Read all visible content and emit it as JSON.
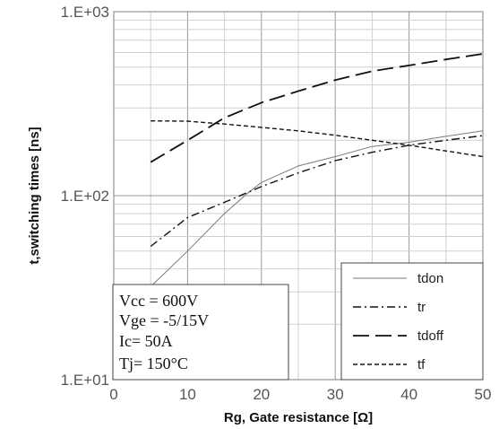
{
  "chart_data": {
    "type": "line",
    "xlabel": "Rg, Gate resistance [Ω]",
    "ylabel": "t,switching times [ns]",
    "xlim": [
      0,
      50
    ],
    "ylim": [
      10,
      1000
    ],
    "yscale": "log",
    "grid": true,
    "x_ticks": [
      "0",
      "10",
      "20",
      "30",
      "40",
      "50"
    ],
    "y_ticks": [
      "1.E+01",
      "1.E+02",
      "1.E+03"
    ],
    "legend_position": "bottom-right",
    "series": [
      {
        "name": "tdon",
        "dash": "solid",
        "x": [
          5,
          10,
          15,
          18,
          20,
          25,
          30,
          35,
          40,
          45,
          50
        ],
        "y": [
          32,
          50,
          80,
          102,
          118,
          145,
          163,
          185,
          195,
          210,
          225
        ]
      },
      {
        "name": "tr",
        "dash": "dashdot",
        "x": [
          5,
          10,
          15,
          20,
          25,
          30,
          35,
          40,
          45,
          50
        ],
        "y": [
          53,
          76,
          92,
          112,
          133,
          155,
          172,
          188,
          200,
          212
        ]
      },
      {
        "name": "tdoff",
        "dash": "longdash",
        "x": [
          5,
          10,
          15,
          20,
          25,
          30,
          35,
          40,
          45,
          50
        ],
        "y": [
          152,
          200,
          265,
          320,
          370,
          425,
          475,
          510,
          550,
          590
        ]
      },
      {
        "name": "tf",
        "dash": "shortdash",
        "x": [
          5,
          10,
          15,
          20,
          25,
          30,
          35,
          40,
          45,
          50
        ],
        "y": [
          255,
          254,
          245,
          235,
          225,
          213,
          200,
          188,
          175,
          163
        ]
      }
    ],
    "annotations": [
      "Vcc = 600V",
      "Vge = -5/15V",
      "Ic= 50A",
      "Tj= 150°C"
    ]
  }
}
